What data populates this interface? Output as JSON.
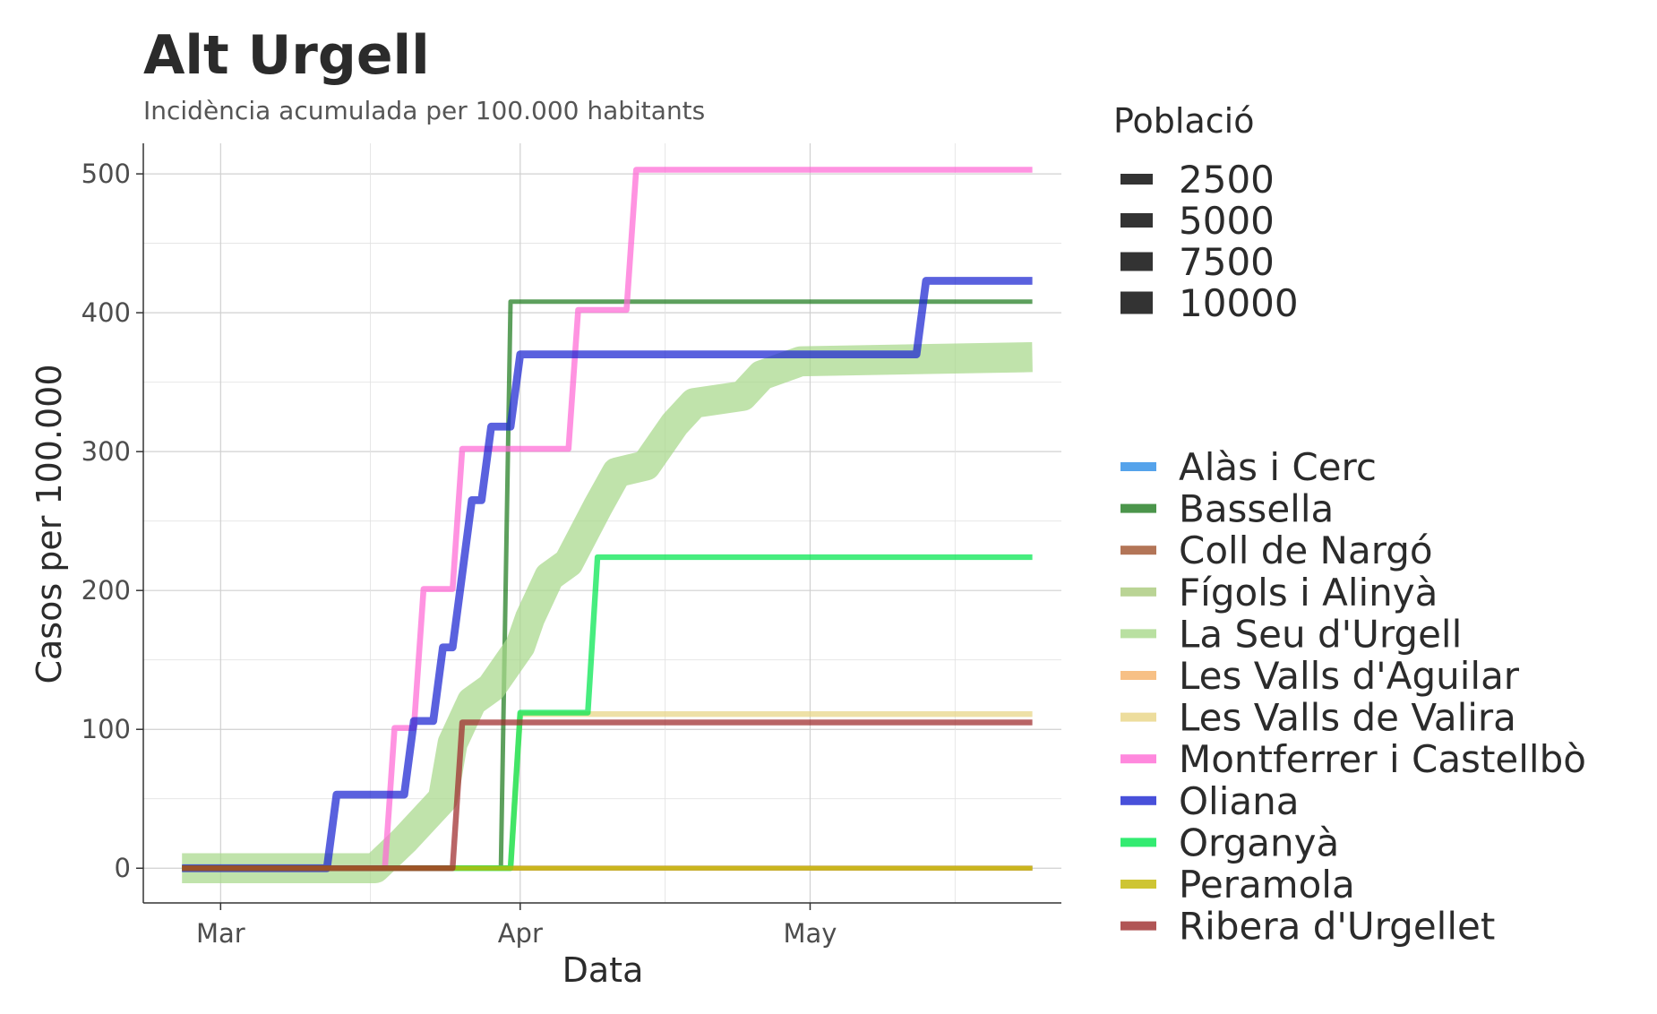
{
  "chart_data": {
    "type": "line",
    "title": "Alt Urgell",
    "subtitle": "Incidència acumulada per 100.000 habitants",
    "xlabel": "Data",
    "ylabel": "Casos per 100.000",
    "x_ticks": [
      "Mar",
      "Apr",
      "May"
    ],
    "x_tick_dates": [
      "2020-03-01",
      "2020-04-01",
      "2020-05-01"
    ],
    "xlim": [
      "2020-02-22",
      "2020-05-27"
    ],
    "y_ticks": [
      0,
      100,
      200,
      300,
      400,
      500
    ],
    "ylim": [
      -25,
      522
    ],
    "grid": true,
    "size_legend": {
      "title": "Població",
      "entries": [
        "2500",
        "5000",
        "7500",
        "10000"
      ]
    },
    "legend_position": "right",
    "series": [
      {
        "name": "Alàs i Cerc",
        "color": "#2b8ce6",
        "population": 350,
        "points": [
          [
            "2020-02-26",
            0
          ],
          [
            "2020-05-24",
            0
          ]
        ]
      },
      {
        "name": "Bassella",
        "color": "#1e7b1e",
        "population": 245,
        "points": [
          [
            "2020-02-26",
            0
          ],
          [
            "2020-03-30",
            0
          ],
          [
            "2020-03-31",
            408
          ],
          [
            "2020-05-24",
            408
          ]
        ]
      },
      {
        "name": "Coll de Nargó",
        "color": "#a0522d",
        "population": 560,
        "points": [
          [
            "2020-02-26",
            0
          ],
          [
            "2020-05-24",
            0
          ]
        ]
      },
      {
        "name": "Fígols i Alinyà",
        "color": "#a9c97a",
        "population": 280,
        "points": [
          [
            "2020-02-26",
            0
          ],
          [
            "2020-05-24",
            0
          ]
        ]
      },
      {
        "name": "La Seu d'Urgell",
        "color": "#a8d88a",
        "population": 12200,
        "points": [
          [
            "2020-02-26",
            0
          ],
          [
            "2020-03-17",
            0
          ],
          [
            "2020-03-20",
            20
          ],
          [
            "2020-03-24",
            50
          ],
          [
            "2020-03-25",
            90
          ],
          [
            "2020-03-27",
            120
          ],
          [
            "2020-03-29",
            130
          ],
          [
            "2020-04-01",
            160
          ],
          [
            "2020-04-02",
            180
          ],
          [
            "2020-04-04",
            210
          ],
          [
            "2020-04-06",
            220
          ],
          [
            "2020-04-09",
            260
          ],
          [
            "2020-04-11",
            285
          ],
          [
            "2020-04-14",
            290
          ],
          [
            "2020-04-17",
            320
          ],
          [
            "2020-04-19",
            335
          ],
          [
            "2020-04-24",
            340
          ],
          [
            "2020-04-26",
            355
          ],
          [
            "2020-04-30",
            365
          ],
          [
            "2020-05-24",
            368
          ]
        ]
      },
      {
        "name": "Les Valls d'Aguilar",
        "color": "#f5b066",
        "population": 280,
        "points": [
          [
            "2020-02-26",
            0
          ],
          [
            "2020-05-24",
            0
          ]
        ]
      },
      {
        "name": "Les Valls de Valira",
        "color": "#e8d585",
        "population": 900,
        "points": [
          [
            "2020-02-26",
            0
          ],
          [
            "2020-03-31",
            0
          ],
          [
            "2020-04-01",
            111
          ],
          [
            "2020-05-24",
            111
          ]
        ]
      },
      {
        "name": "Montferrer i Castellbò",
        "color": "#ff6ad5",
        "population": 1000,
        "points": [
          [
            "2020-02-26",
            0
          ],
          [
            "2020-03-18",
            0
          ],
          [
            "2020-03-19",
            101
          ],
          [
            "2020-03-21",
            101
          ],
          [
            "2020-03-22",
            201
          ],
          [
            "2020-03-25",
            201
          ],
          [
            "2020-03-26",
            302
          ],
          [
            "2020-04-06",
            302
          ],
          [
            "2020-04-07",
            402
          ],
          [
            "2020-04-12",
            402
          ],
          [
            "2020-04-13",
            503
          ],
          [
            "2020-05-24",
            503
          ]
        ]
      },
      {
        "name": "Oliana",
        "color": "#1a24d1",
        "population": 1900,
        "points": [
          [
            "2020-02-26",
            0
          ],
          [
            "2020-03-12",
            0
          ],
          [
            "2020-03-13",
            53
          ],
          [
            "2020-03-20",
            53
          ],
          [
            "2020-03-21",
            106
          ],
          [
            "2020-03-23",
            106
          ],
          [
            "2020-03-24",
            159
          ],
          [
            "2020-03-25",
            159
          ],
          [
            "2020-03-26",
            212
          ],
          [
            "2020-03-27",
            265
          ],
          [
            "2020-03-28",
            265
          ],
          [
            "2020-03-29",
            318
          ],
          [
            "2020-03-31",
            318
          ],
          [
            "2020-04-01",
            370
          ],
          [
            "2020-05-12",
            370
          ],
          [
            "2020-05-13",
            423
          ],
          [
            "2020-05-24",
            423
          ]
        ]
      },
      {
        "name": "Organyà",
        "color": "#00e64d",
        "population": 900,
        "points": [
          [
            "2020-02-26",
            0
          ],
          [
            "2020-03-31",
            0
          ],
          [
            "2020-04-01",
            112
          ],
          [
            "2020-04-08",
            112
          ],
          [
            "2020-04-09",
            224
          ],
          [
            "2020-05-24",
            224
          ]
        ]
      },
      {
        "name": "Peramola",
        "color": "#c2b700",
        "population": 380,
        "points": [
          [
            "2020-02-26",
            0
          ],
          [
            "2020-05-24",
            0
          ]
        ]
      },
      {
        "name": "Ribera d'Urgellet",
        "color": "#9e2a2b",
        "population": 950,
        "points": [
          [
            "2020-02-26",
            0
          ],
          [
            "2020-03-25",
            0
          ],
          [
            "2020-03-26",
            105
          ],
          [
            "2020-05-24",
            105
          ]
        ]
      }
    ]
  }
}
